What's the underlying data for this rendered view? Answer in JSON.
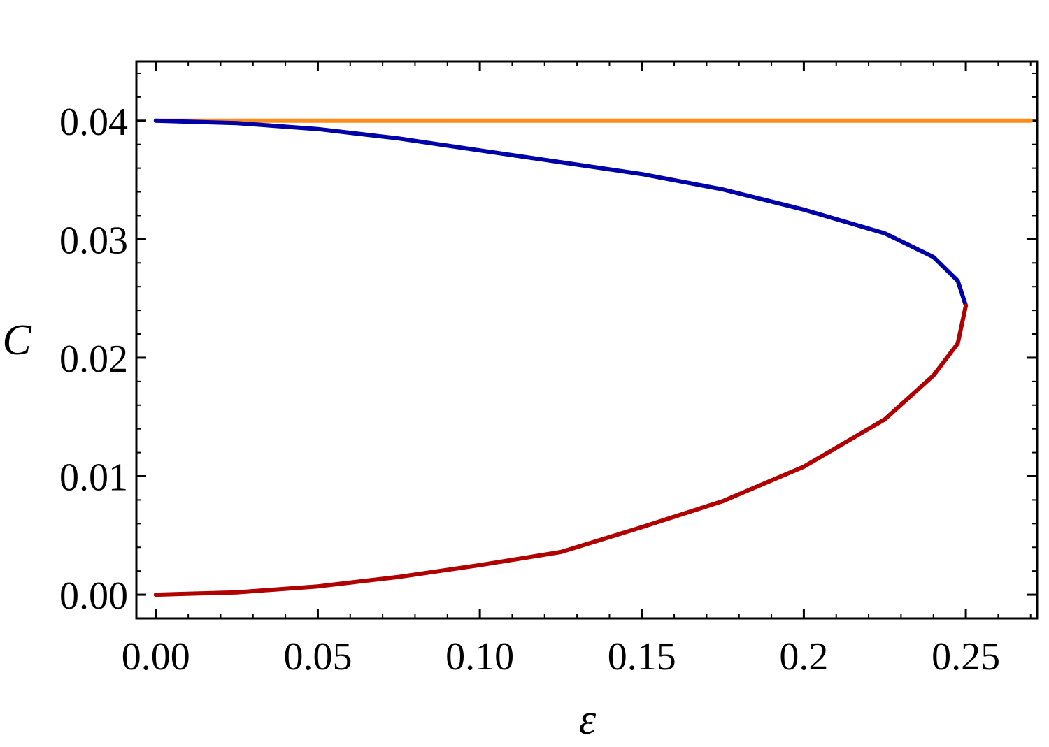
{
  "chart_data": {
    "type": "line",
    "title": "",
    "xlabel": "ε",
    "ylabel": "C",
    "xlim": [
      -0.006,
      0.272
    ],
    "ylim": [
      -0.002,
      0.045
    ],
    "grid": false,
    "legend": "none",
    "x_ticks": [
      {
        "value": 0.0,
        "label": "0.00"
      },
      {
        "value": 0.05,
        "label": "0.05"
      },
      {
        "value": 0.1,
        "label": "0.10"
      },
      {
        "value": 0.15,
        "label": "0.15"
      },
      {
        "value": 0.2,
        "label": "0.2"
      },
      {
        "value": 0.25,
        "label": "0.25"
      }
    ],
    "y_ticks": [
      {
        "value": 0.0,
        "label": "0.00"
      },
      {
        "value": 0.01,
        "label": "0.01"
      },
      {
        "value": 0.02,
        "label": "0.02"
      },
      {
        "value": 0.03,
        "label": "0.03"
      },
      {
        "value": 0.04,
        "label": "0.04"
      }
    ],
    "series": [
      {
        "color": "#ff8c1a",
        "x": [
          0.0,
          0.27
        ],
        "y": [
          0.04,
          0.04
        ]
      },
      {
        "color": "#0000a8",
        "x": [
          0.0,
          0.025,
          0.05,
          0.075,
          0.1,
          0.125,
          0.15,
          0.175,
          0.2,
          0.225,
          0.24,
          0.2475,
          0.25
        ],
        "y": [
          0.04,
          0.0398,
          0.0393,
          0.0385,
          0.0375,
          0.0365,
          0.0355,
          0.0342,
          0.0325,
          0.0305,
          0.0285,
          0.0265,
          0.0244
        ]
      },
      {
        "color": "#b00000",
        "x": [
          0.0,
          0.025,
          0.05,
          0.075,
          0.1,
          0.125,
          0.15,
          0.175,
          0.2,
          0.225,
          0.24,
          0.2475,
          0.25
        ],
        "y": [
          0.0,
          0.0002,
          0.0007,
          0.0015,
          0.0025,
          0.0036,
          0.0057,
          0.0079,
          0.0108,
          0.0148,
          0.0185,
          0.0212,
          0.0244
        ]
      }
    ]
  }
}
